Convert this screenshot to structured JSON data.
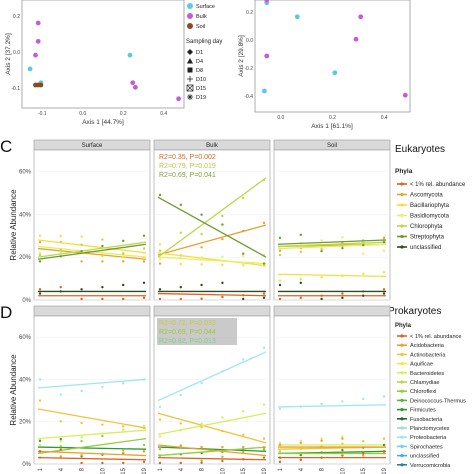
{
  "pcoa": {
    "left": {
      "xlabel": "Axis 1  [44.7%]",
      "ylabel": "Axis 2  [37.2%]",
      "ticks_x": [
        "-0.1",
        "0.0",
        "0.2",
        "0.4"
      ],
      "ticks_y": [
        "0.2",
        "0.0",
        "-0.1"
      ]
    },
    "right": {
      "xlabel": "Axis 1  [61.1%]",
      "ylabel": "Axis 2  [29.8%]",
      "ticks_x": [
        "0.0",
        "0.2",
        "0.4"
      ],
      "ticks_y": [
        "0.2",
        "0.0",
        "-0.2",
        "-0.4"
      ]
    },
    "type_legend": [
      {
        "label": "Surface",
        "color": "#5bc8e6"
      },
      {
        "label": "Bulk",
        "color": "#c75bd6"
      },
      {
        "label": "Soil",
        "color": "#8a4a1e"
      }
    ],
    "sampling_title": "Sampling day",
    "sampling_legend": [
      "D1",
      "D4",
      "D8",
      "D10",
      "D15",
      "D19"
    ]
  },
  "panel_c": {
    "letter": "C",
    "kingdom": "Eukaryotes",
    "strips": [
      "Surface",
      "Bulk",
      "Soil"
    ],
    "ylabel": "Relative Abundance",
    "yticks": [
      "60%",
      "40%",
      "20%",
      "0%"
    ],
    "stats": [
      {
        "text": "R2=0.35, P=0.002",
        "color": "#d4661c"
      },
      {
        "text": "R2=0.79, P=0.019",
        "color": "#b9c94a"
      },
      {
        "text": "R2=0.69, P=0.041",
        "color": "#7fa43a"
      }
    ],
    "legend_title": "Phyla",
    "legend": [
      {
        "label": "< 1% rel. abundance",
        "color": "#e0621e"
      },
      {
        "label": "Ascomycota",
        "color": "#eaa12f"
      },
      {
        "label": "Bacillariophyta",
        "color": "#f2df3a"
      },
      {
        "label": "Basidiomycota",
        "color": "#e8ee63"
      },
      {
        "label": "Chlorophyta",
        "color": "#b9d94a"
      },
      {
        "label": "Streptophyta",
        "color": "#6d9b2f"
      },
      {
        "label": "unclassified",
        "color": "#2e4a1f"
      }
    ]
  },
  "panel_d": {
    "letter": "D",
    "kingdom": "Prokaryotes",
    "strips": [
      "",
      "",
      ""
    ],
    "ylabel": "Relative Abundance",
    "yticks": [
      "60%",
      "40%",
      "20%",
      "0%"
    ],
    "stats": [
      {
        "text": "R2=0.72, P=0.033",
        "color": "#c9c94a"
      },
      {
        "text": "R2=0.69, P=0.044",
        "color": "#9bc93a"
      },
      {
        "text": "R2=0.82, P=0.013",
        "color": "#7fcf7f"
      }
    ],
    "legend_title": "Phyla",
    "legend": [
      {
        "label": "< 1% rel. abundance",
        "color": "#e0621e"
      },
      {
        "label": "Acidobacteria",
        "color": "#eaa12f"
      },
      {
        "label": "Actinobacteria",
        "color": "#f2c23a"
      },
      {
        "label": "Aquificae",
        "color": "#f2ea3a"
      },
      {
        "label": "Bacteroidetes",
        "color": "#d7ee55"
      },
      {
        "label": "Chlamydiae",
        "color": "#b9d94a"
      },
      {
        "label": "Chloroflexi",
        "color": "#8fcf3a"
      },
      {
        "label": "Deinococcus-Thermus",
        "color": "#55b83a"
      },
      {
        "label": "Firmicutes",
        "color": "#2f9b2f"
      },
      {
        "label": "Fusobacteria",
        "color": "#1f6a1f"
      },
      {
        "label": "Planctomycetes",
        "color": "#8fe0d0"
      },
      {
        "label": "Proteobacteria",
        "color": "#9fe6f2"
      },
      {
        "label": "Spirochaetes",
        "color": "#6fd0e8"
      },
      {
        "label": "unclassified",
        "color": "#3fb4d8"
      },
      {
        "label": "Verrucomicrobia",
        "color": "#2a7fa8"
      }
    ],
    "xticks": [
      "1",
      "4",
      "8",
      "10",
      "15",
      "19"
    ]
  },
  "chart_data": [
    {
      "type": "scatter",
      "title": "",
      "xlabel": "Axis 1  [44.7%]",
      "ylabel": "Axis 2  [37.2%]",
      "xlim": [
        -0.15,
        0.45
      ],
      "ylim": [
        -0.17,
        0.3
      ],
      "series": [
        {
          "name": "Surface",
          "points": [
            [
              -0.12,
              0.0
            ],
            [
              -0.08,
              -0.06
            ],
            [
              0.25,
              0.06
            ],
            [
              -0.1,
              -0.07
            ]
          ]
        },
        {
          "name": "Bulk",
          "points": [
            [
              -0.09,
              0.2
            ],
            [
              -0.09,
              0.12
            ],
            [
              -0.1,
              0.06
            ],
            [
              0.26,
              -0.06
            ],
            [
              0.27,
              -0.08
            ],
            [
              0.43,
              -0.13
            ]
          ]
        },
        {
          "name": "Soil",
          "points": [
            [
              -0.1,
              -0.07
            ],
            [
              -0.09,
              -0.07
            ],
            [
              -0.08,
              -0.07
            ]
          ]
        }
      ]
    },
    {
      "type": "scatter",
      "title": "",
      "xlabel": "Axis 1  [61.1%]",
      "ylabel": "Axis 2  [29.8%]",
      "xlim": [
        -0.08,
        0.58
      ],
      "ylim": [
        -0.5,
        0.3
      ],
      "series": [
        {
          "name": "Surface",
          "points": [
            [
              -0.03,
              0.28
            ],
            [
              -0.04,
              -0.35
            ],
            [
              0.26,
              -0.22
            ],
            [
              0.1,
              0.18
            ]
          ]
        },
        {
          "name": "Bulk",
          "points": [
            [
              -0.03,
              0.3
            ],
            [
              0.37,
              0.18
            ],
            [
              0.35,
              0.02
            ],
            [
              0.56,
              -0.38
            ],
            [
              -0.03,
              -0.1
            ]
          ]
        },
        {
          "name": "Soil",
          "points": [
            [
              -0.02,
              0.32
            ]
          ]
        }
      ]
    },
    {
      "type": "line",
      "title": "Eukaryotes",
      "xlabel": "",
      "ylabel": "Relative Abundance",
      "ylim": [
        0,
        70
      ],
      "facets": [
        "Surface",
        "Bulk",
        "Soil"
      ],
      "series": [
        {
          "name": "Ascomycota",
          "trend": [
            [
              24,
              19
            ],
            [
              21,
              35
            ],
            [
              25,
              26
            ]
          ]
        },
        {
          "name": "Bacillariophyta",
          "trend": [
            [
              28,
              22
            ],
            [
              22,
              16
            ],
            [
              12,
              11
            ]
          ]
        },
        {
          "name": "Basidiomycota",
          "trend": [
            [
              25,
              20
            ],
            [
              20,
              17
            ],
            [
              24,
              26
            ]
          ]
        },
        {
          "name": "Chlorophyta",
          "trend": [
            [
              20,
              27
            ],
            [
              20,
              57
            ],
            [
              25,
              27
            ]
          ]
        },
        {
          "name": "Streptophyta",
          "trend": [
            [
              19,
              26
            ],
            [
              48,
              20
            ],
            [
              26,
              28
            ]
          ]
        },
        {
          "name": "< 1% rel. abundance",
          "trend": [
            [
              2,
              2
            ],
            [
              3,
              2
            ],
            [
              2,
              2
            ]
          ]
        },
        {
          "name": "unclassified",
          "trend": [
            [
              4,
              4
            ],
            [
              4,
              4
            ],
            [
              4,
              4
            ]
          ]
        }
      ]
    },
    {
      "type": "line",
      "title": "Prokaryotes",
      "xlabel": "",
      "ylabel": "Relative Abundance",
      "ylim": [
        0,
        70
      ],
      "facets": [
        "",
        "",
        ""
      ],
      "x": [
        "1",
        "4",
        "8",
        "10",
        "15",
        "19"
      ],
      "series": [
        {
          "name": "Proteobacteria",
          "trend": [
            [
              36,
              40
            ],
            [
              30,
              53
            ],
            [
              27,
              28
            ]
          ]
        },
        {
          "name": "Actinobacteria",
          "trend": [
            [
              26,
              17
            ],
            [
              24,
              10
            ],
            [
              7,
              8
            ]
          ]
        },
        {
          "name": "Bacteroidetes",
          "trend": [
            [
              12,
              16
            ],
            [
              14,
              24
            ],
            [
              9,
              9
            ]
          ]
        },
        {
          "name": "Firmicutes",
          "trend": [
            [
              8,
              7
            ],
            [
              8,
              6
            ],
            [
              5,
              6
            ]
          ]
        },
        {
          "name": "Chloroflexi",
          "trend": [
            [
              5,
              12
            ],
            [
              4,
              8
            ],
            [
              5,
              5
            ]
          ]
        },
        {
          "name": "Acidobacteria",
          "trend": [
            [
              6,
              4
            ],
            [
              9,
              4
            ],
            [
              8,
              8
            ]
          ]
        },
        {
          "name": "< 1% rel. abundance",
          "trend": [
            [
              3,
              2
            ],
            [
              3,
              2
            ],
            [
              3,
              3
            ]
          ]
        }
      ]
    }
  ]
}
